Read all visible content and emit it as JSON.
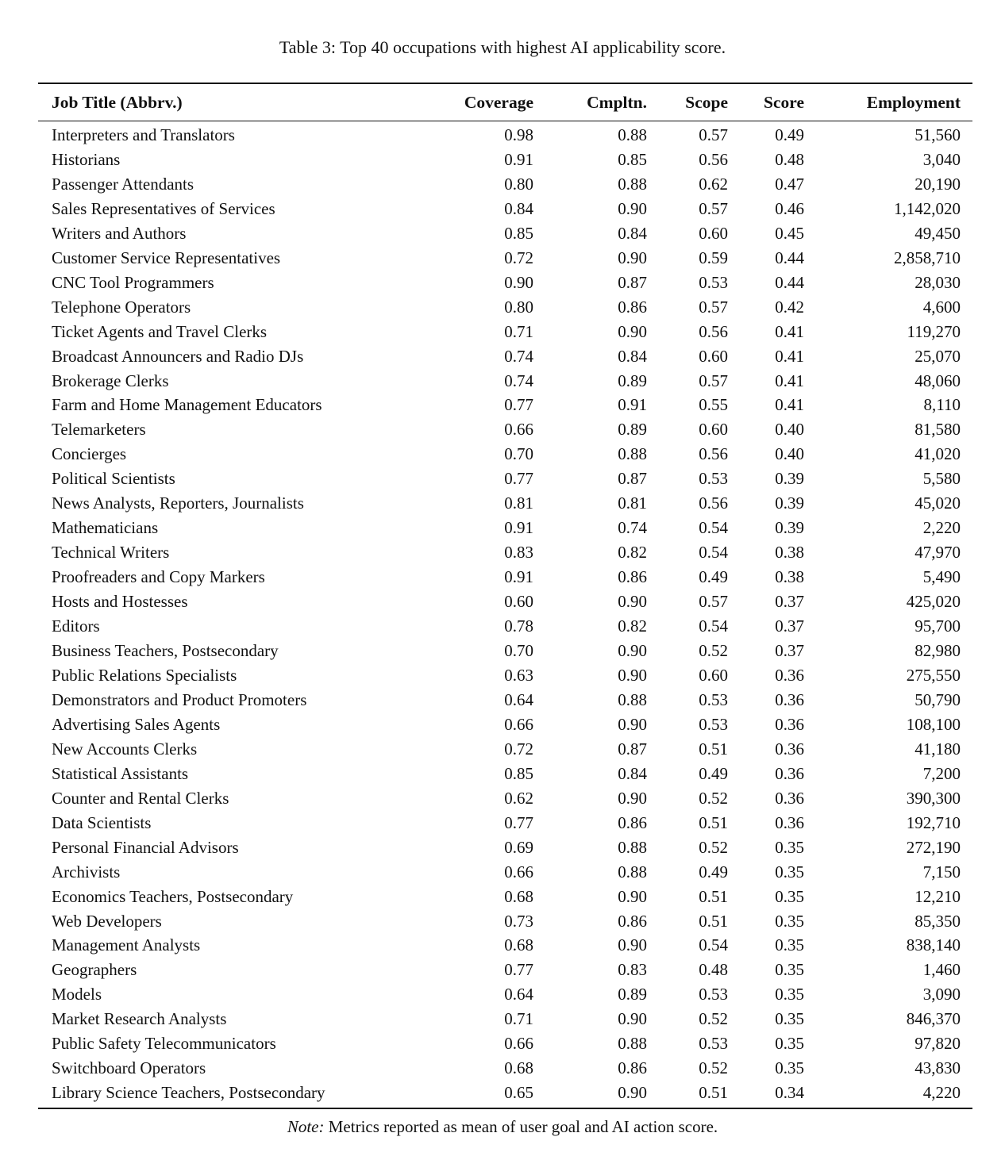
{
  "caption": "Table 3: Top 40 occupations with highest AI applicability score.",
  "table": {
    "headers": [
      "Job Title (Abbrv.)",
      "Coverage",
      "Cmpltn.",
      "Scope",
      "Score",
      "Employment"
    ],
    "rows": [
      [
        "Interpreters and Translators",
        "0.98",
        "0.88",
        "0.57",
        "0.49",
        "51,560"
      ],
      [
        "Historians",
        "0.91",
        "0.85",
        "0.56",
        "0.48",
        "3,040"
      ],
      [
        "Passenger Attendants",
        "0.80",
        "0.88",
        "0.62",
        "0.47",
        "20,190"
      ],
      [
        "Sales Representatives of Services",
        "0.84",
        "0.90",
        "0.57",
        "0.46",
        "1,142,020"
      ],
      [
        "Writers and Authors",
        "0.85",
        "0.84",
        "0.60",
        "0.45",
        "49,450"
      ],
      [
        "Customer Service Representatives",
        "0.72",
        "0.90",
        "0.59",
        "0.44",
        "2,858,710"
      ],
      [
        "CNC Tool Programmers",
        "0.90",
        "0.87",
        "0.53",
        "0.44",
        "28,030"
      ],
      [
        "Telephone Operators",
        "0.80",
        "0.86",
        "0.57",
        "0.42",
        "4,600"
      ],
      [
        "Ticket Agents and Travel Clerks",
        "0.71",
        "0.90",
        "0.56",
        "0.41",
        "119,270"
      ],
      [
        "Broadcast Announcers and Radio DJs",
        "0.74",
        "0.84",
        "0.60",
        "0.41",
        "25,070"
      ],
      [
        "Brokerage Clerks",
        "0.74",
        "0.89",
        "0.57",
        "0.41",
        "48,060"
      ],
      [
        "Farm and Home Management Educators",
        "0.77",
        "0.91",
        "0.55",
        "0.41",
        "8,110"
      ],
      [
        "Telemarketers",
        "0.66",
        "0.89",
        "0.60",
        "0.40",
        "81,580"
      ],
      [
        "Concierges",
        "0.70",
        "0.88",
        "0.56",
        "0.40",
        "41,020"
      ],
      [
        "Political Scientists",
        "0.77",
        "0.87",
        "0.53",
        "0.39",
        "5,580"
      ],
      [
        "News Analysts, Reporters, Journalists",
        "0.81",
        "0.81",
        "0.56",
        "0.39",
        "45,020"
      ],
      [
        "Mathematicians",
        "0.91",
        "0.74",
        "0.54",
        "0.39",
        "2,220"
      ],
      [
        "Technical Writers",
        "0.83",
        "0.82",
        "0.54",
        "0.38",
        "47,970"
      ],
      [
        "Proofreaders and Copy Markers",
        "0.91",
        "0.86",
        "0.49",
        "0.38",
        "5,490"
      ],
      [
        "Hosts and Hostesses",
        "0.60",
        "0.90",
        "0.57",
        "0.37",
        "425,020"
      ],
      [
        "Editors",
        "0.78",
        "0.82",
        "0.54",
        "0.37",
        "95,700"
      ],
      [
        "Business Teachers, Postsecondary",
        "0.70",
        "0.90",
        "0.52",
        "0.37",
        "82,980"
      ],
      [
        "Public Relations Specialists",
        "0.63",
        "0.90",
        "0.60",
        "0.36",
        "275,550"
      ],
      [
        "Demonstrators and Product Promoters",
        "0.64",
        "0.88",
        "0.53",
        "0.36",
        "50,790"
      ],
      [
        "Advertising Sales Agents",
        "0.66",
        "0.90",
        "0.53",
        "0.36",
        "108,100"
      ],
      [
        "New Accounts Clerks",
        "0.72",
        "0.87",
        "0.51",
        "0.36",
        "41,180"
      ],
      [
        "Statistical Assistants",
        "0.85",
        "0.84",
        "0.49",
        "0.36",
        "7,200"
      ],
      [
        "Counter and Rental Clerks",
        "0.62",
        "0.90",
        "0.52",
        "0.36",
        "390,300"
      ],
      [
        "Data Scientists",
        "0.77",
        "0.86",
        "0.51",
        "0.36",
        "192,710"
      ],
      [
        "Personal Financial Advisors",
        "0.69",
        "0.88",
        "0.52",
        "0.35",
        "272,190"
      ],
      [
        "Archivists",
        "0.66",
        "0.88",
        "0.49",
        "0.35",
        "7,150"
      ],
      [
        "Economics Teachers, Postsecondary",
        "0.68",
        "0.90",
        "0.51",
        "0.35",
        "12,210"
      ],
      [
        "Web Developers",
        "0.73",
        "0.86",
        "0.51",
        "0.35",
        "85,350"
      ],
      [
        "Management Analysts",
        "0.68",
        "0.90",
        "0.54",
        "0.35",
        "838,140"
      ],
      [
        "Geographers",
        "0.77",
        "0.83",
        "0.48",
        "0.35",
        "1,460"
      ],
      [
        "Models",
        "0.64",
        "0.89",
        "0.53",
        "0.35",
        "3,090"
      ],
      [
        "Market Research Analysts",
        "0.71",
        "0.90",
        "0.52",
        "0.35",
        "846,370"
      ],
      [
        "Public Safety Telecommunicators",
        "0.66",
        "0.88",
        "0.53",
        "0.35",
        "97,820"
      ],
      [
        "Switchboard Operators",
        "0.68",
        "0.86",
        "0.52",
        "0.35",
        "43,830"
      ],
      [
        "Library Science Teachers, Postsecondary",
        "0.65",
        "0.90",
        "0.51",
        "0.34",
        "4,220"
      ]
    ]
  },
  "note": {
    "label": "Note:",
    "text": "Metrics reported as mean of user goal and AI action score."
  }
}
